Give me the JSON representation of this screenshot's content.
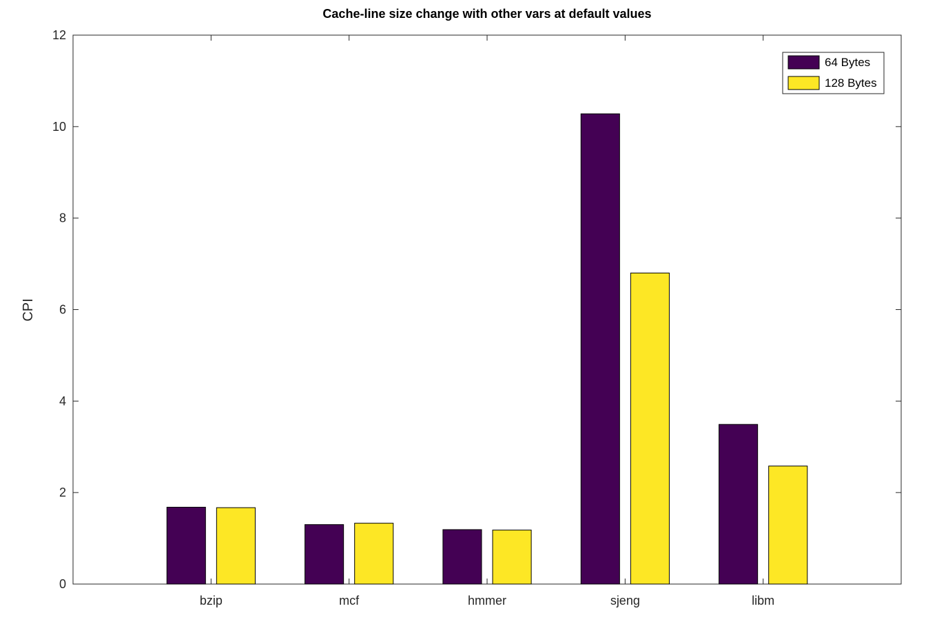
{
  "chart_data": {
    "type": "bar",
    "title": "Cache-line size change with other vars at default values",
    "xlabel": "",
    "ylabel": "CPI",
    "categories": [
      "bzip",
      "mcf",
      "hmmer",
      "sjeng",
      "libm"
    ],
    "series": [
      {
        "name": "64 Bytes",
        "values": [
          1.68,
          1.3,
          1.19,
          10.28,
          3.49
        ],
        "color": "#440154"
      },
      {
        "name": "128 Bytes",
        "values": [
          1.67,
          1.33,
          1.18,
          6.8,
          2.58
        ],
        "color": "#FDE725"
      }
    ],
    "ylim": [
      0,
      12
    ],
    "yticks": [
      0,
      2,
      4,
      6,
      8,
      10,
      12
    ],
    "xlim": [
      0,
      6
    ],
    "grid": false,
    "legend_position": "top-right"
  }
}
